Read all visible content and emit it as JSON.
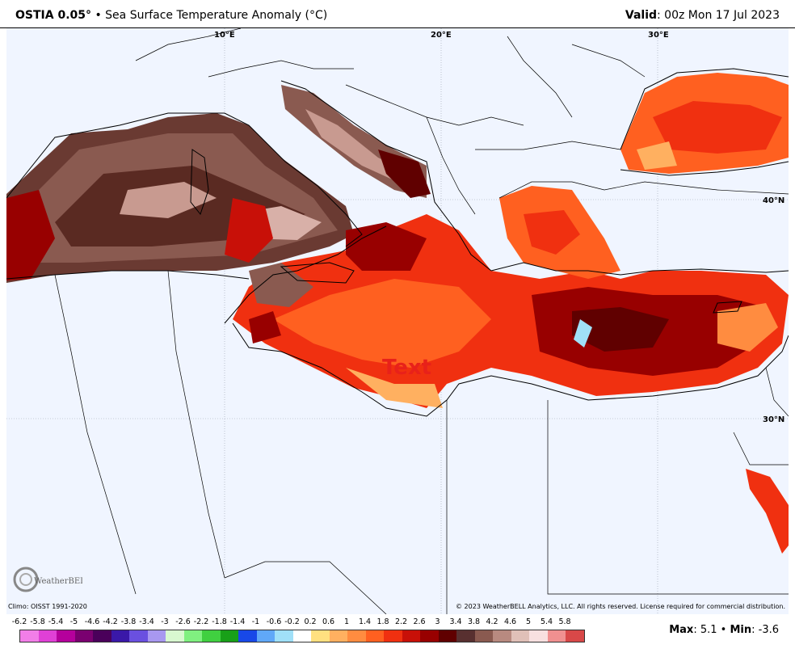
{
  "header": {
    "product": "OSTIA 0.05",
    "product_sup": "°",
    "separator": " • ",
    "variable": "Sea Surface Temperature Anomaly (°C)",
    "valid_label": "Valid",
    "valid_value": ": 00z Mon 17 Jul 2023"
  },
  "map": {
    "lon_labels": [
      "10°E",
      "20°E",
      "30°E"
    ],
    "lat_labels": [
      "40°N",
      "30°N"
    ],
    "overlay_text": "Text"
  },
  "footer": {
    "climo": "Climo: OISST 1991-2020",
    "copyright": "© 2023 WeatherBELL Analytics, LLC. All rights reserved. License required for commercial distribution.",
    "logo_text": "WeatherBELL",
    "max_label": "Max",
    "max_value": ": 5.1",
    "min_sep": " • ",
    "min_label": "Min",
    "min_value": ": -3.6"
  },
  "colorbar": {
    "labels": [
      "-6.2",
      "-5.8",
      "-5.4",
      "-5",
      "-4.6",
      "-4.2",
      "-3.8",
      "-3.4",
      "-3",
      "-2.6",
      "-2.2",
      "-1.8",
      "-1.4",
      "-1",
      "-0.6",
      "-0.2",
      "0.2",
      "0.6",
      "1",
      "1.4",
      "1.8",
      "2.2",
      "2.6",
      "3",
      "3.4",
      "3.8",
      "4.2",
      "4.6",
      "5",
      "5.4",
      "5.8"
    ],
    "colors": [
      "#f27ee8",
      "#e040d6",
      "#b5009c",
      "#7a0070",
      "#4a005a",
      "#3a18a8",
      "#6a50e0",
      "#a898f0",
      "#d8f8d0",
      "#80f080",
      "#40d040",
      "#18a018",
      "#1848e8",
      "#60a8f8",
      "#a0e0f8",
      "#ffffff",
      "#ffe080",
      "#ffb060",
      "#ff8c40",
      "#ff6020",
      "#f03010",
      "#c81008",
      "#980000",
      "#600000",
      "#583030",
      "#8a5a50",
      "#b88a80",
      "#e0c0b8",
      "#f8e0e0",
      "#f09090",
      "#d84848"
    ]
  }
}
